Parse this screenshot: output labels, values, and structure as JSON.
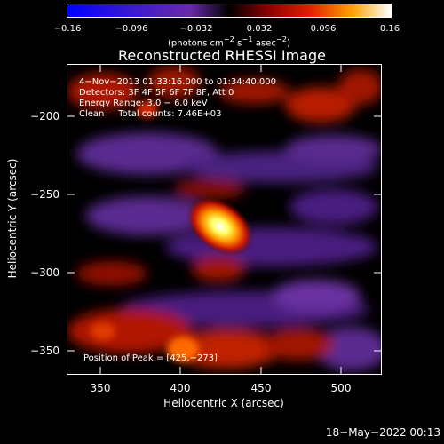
{
  "colorbar": {
    "ticks": [
      "−0.16",
      "−0.096",
      "−0.032",
      "0.032",
      "0.096",
      "0.16"
    ],
    "units_html": "(photons cm<sup>−2</sup> s<sup>−1</sup> asec<sup>−2</sup>)"
  },
  "title": "Reconstructed RHESSI Image",
  "info": {
    "time_range": "4−Nov−2013 01:33:16.000 to 01:34:40.000",
    "detectors": "Detectors: 3F 4F 5F 6F 7F 8F, Att 0",
    "energy": "Energy Range: 3.0 − 6.0 keV",
    "clean": "Clean     Total counts: 7.46E+03",
    "peak": "Position of Peak = [425,−273]"
  },
  "axes": {
    "xlabel": "Heliocentric X (arcsec)",
    "ylabel": "Heliocentric Y (arcsec)",
    "xticks": [
      "350",
      "400",
      "450",
      "500"
    ],
    "yticks": [
      "−200",
      "−250",
      "−300",
      "−350"
    ]
  },
  "timestamp": "18−May−2022 00:13",
  "colors": {
    "background": "#000000",
    "axis": "#ffffff"
  }
}
